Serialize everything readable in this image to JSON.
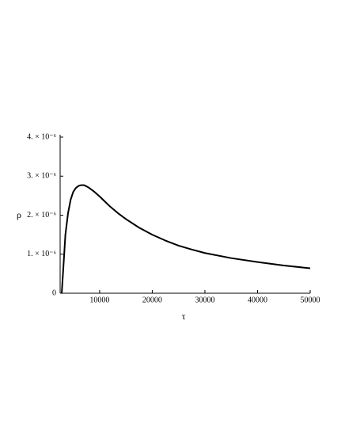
{
  "chart_data": {
    "type": "line",
    "x_label": "τ",
    "y_label": "ρ",
    "x": [
      2800,
      3200,
      3500,
      4000,
      4500,
      5000,
      5500,
      6000,
      6500,
      7000,
      7500,
      8000,
      9000,
      10000,
      11000,
      12000,
      13500,
      15000,
      17500,
      20000,
      22500,
      25000,
      27500,
      30000,
      35000,
      40000,
      45000,
      50000
    ],
    "values": [
      0,
      8.5e-07,
      1.5e-06,
      2.05e-06,
      2.4e-06,
      2.6e-06,
      2.7e-06,
      2.75e-06,
      2.77e-06,
      2.77e-06,
      2.74e-06,
      2.7e-06,
      2.6e-06,
      2.48e-06,
      2.35e-06,
      2.22e-06,
      2.05e-06,
      1.9e-06,
      1.68e-06,
      1.5e-06,
      1.35e-06,
      1.22e-06,
      1.12e-06,
      1.03e-06,
      9e-07,
      8e-07,
      7.1e-07,
      6.4e-07
    ],
    "color": "#000000",
    "xlim": [
      2500,
      50000
    ],
    "ylim": [
      0,
      4e-06
    ],
    "xticks": [
      10000,
      20000,
      30000,
      40000,
      50000
    ],
    "yticks": [
      0,
      {
        "value": 1e-06,
        "label": "1. × 10⁻⁶"
      },
      {
        "value": 2e-06,
        "label": "2. × 10⁻⁶"
      },
      {
        "value": 3e-06,
        "label": "3. × 10⁻⁶"
      },
      {
        "value": 4e-06,
        "label": "4. × 10⁻⁶"
      }
    ]
  }
}
